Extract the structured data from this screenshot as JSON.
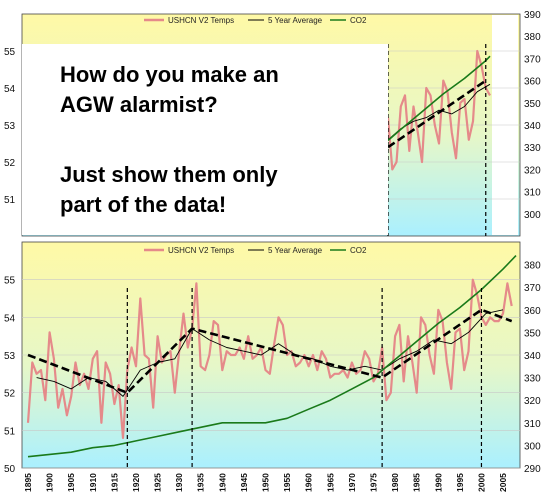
{
  "caption": {
    "line1": "How do you make an",
    "line2": "AGW alarmist?",
    "line3": "Just show them only",
    "line4": "part of the data!"
  },
  "colors": {
    "temps": "#e58a8a",
    "avg": "#000000",
    "co2": "#1a7a1a",
    "trend": "#000000",
    "bg_top": "#fff9a6",
    "bg_bottom": "#aaf0ff"
  },
  "chart_data": [
    {
      "type": "line",
      "panel": "top",
      "legend": [
        "USHCN V2 Temps",
        "5 Year Average",
        "CO2"
      ],
      "x_range": [
        1977,
        2006
      ],
      "ylim_left": [
        50,
        56
      ],
      "ylim_right": [
        290,
        390
      ],
      "y_ticks_left": [
        51,
        52,
        53,
        54,
        55
      ],
      "y_ticks_right": [
        300,
        310,
        320,
        330,
        340,
        350,
        360,
        370,
        380,
        390
      ],
      "series": [
        {
          "name": "USHCN V2 Temps",
          "axis": "left",
          "x": [
            1977,
            1978,
            1979,
            1980,
            1981,
            1982,
            1983,
            1984,
            1985,
            1986,
            1987,
            1988,
            1989,
            1990,
            1991,
            1992,
            1993,
            1994,
            1995,
            1996,
            1997,
            1998,
            1999,
            2000,
            2001
          ],
          "values": [
            53.2,
            51.8,
            52.0,
            53.5,
            53.8,
            52.3,
            53.5,
            52.8,
            52.0,
            54.0,
            53.8,
            53.0,
            52.5,
            54.2,
            53.9,
            52.8,
            52.1,
            53.6,
            53.7,
            52.6,
            53.1,
            55.0,
            54.6,
            54.0,
            53.8
          ]
        },
        {
          "name": "5 Year Average",
          "axis": "left",
          "x": [
            1977,
            1980,
            1983,
            1986,
            1989,
            1992,
            1995,
            1998,
            2001
          ],
          "values": [
            52.6,
            52.9,
            53.1,
            53.2,
            53.4,
            53.3,
            53.5,
            53.9,
            54.1
          ]
        },
        {
          "name": "CO2",
          "axis": "right",
          "x": [
            1977,
            1980,
            1985,
            1990,
            1995,
            2000,
            2001
          ],
          "values": [
            333,
            338,
            346,
            354,
            361,
            369,
            371
          ]
        }
      ],
      "trend": {
        "x": [
          1977,
          2000
        ],
        "values": [
          52.4,
          54.2
        ]
      },
      "markers_x": [
        1977,
        2000
      ]
    },
    {
      "type": "line",
      "panel": "bottom",
      "legend": [
        "USHCN V2 Temps",
        "5 Year Average",
        "CO2"
      ],
      "x_range": [
        1895,
        2008
      ],
      "x_ticks": [
        "1895",
        "1900",
        "1905",
        "1910",
        "1915",
        "1920",
        "1925",
        "1930",
        "1935",
        "1940",
        "1945",
        "1950",
        "1955",
        "1960",
        "1965",
        "1970",
        "1975",
        "1980",
        "1985",
        "1990",
        "1995",
        "2000",
        "2005"
      ],
      "ylim_left": [
        50,
        56
      ],
      "ylim_right": [
        290,
        390
      ],
      "y_ticks_left": [
        50,
        51,
        52,
        53,
        54,
        55
      ],
      "y_ticks_right": [
        290,
        300,
        310,
        320,
        330,
        340,
        350,
        360,
        370,
        380
      ],
      "series": [
        {
          "name": "USHCN V2 Temps",
          "axis": "left",
          "x": [
            1895,
            1896,
            1897,
            1898,
            1899,
            1900,
            1901,
            1902,
            1903,
            1904,
            1905,
            1906,
            1907,
            1908,
            1909,
            1910,
            1911,
            1912,
            1913,
            1914,
            1915,
            1916,
            1917,
            1918,
            1919,
            1920,
            1921,
            1922,
            1923,
            1924,
            1925,
            1926,
            1927,
            1928,
            1929,
            1930,
            1931,
            1932,
            1933,
            1934,
            1935,
            1936,
            1937,
            1938,
            1939,
            1940,
            1941,
            1942,
            1943,
            1944,
            1945,
            1946,
            1947,
            1948,
            1949,
            1950,
            1951,
            1952,
            1953,
            1954,
            1955,
            1956,
            1957,
            1958,
            1959,
            1960,
            1961,
            1962,
            1963,
            1964,
            1965,
            1966,
            1967,
            1968,
            1969,
            1970,
            1971,
            1972,
            1973,
            1974,
            1975,
            1976,
            1977,
            1978,
            1979,
            1980,
            1981,
            1982,
            1983,
            1984,
            1985,
            1986,
            1987,
            1988,
            1989,
            1990,
            1991,
            1992,
            1993,
            1994,
            1995,
            1996,
            1997,
            1998,
            1999,
            2000,
            2001,
            2002,
            2003,
            2004,
            2005,
            2006,
            2007
          ],
          "values": [
            51.2,
            52.8,
            52.5,
            52.6,
            51.8,
            53.6,
            52.9,
            51.6,
            52.1,
            51.4,
            51.9,
            52.8,
            52.2,
            52.5,
            52.1,
            52.9,
            53.1,
            51.2,
            52.8,
            52.5,
            51.7,
            52.2,
            50.8,
            52.6,
            53.2,
            52.7,
            54.5,
            53.0,
            52.9,
            51.6,
            53.5,
            52.8,
            53.0,
            53.1,
            52.0,
            53.1,
            54.1,
            53.2,
            53.7,
            54.9,
            52.7,
            52.6,
            53.0,
            53.9,
            53.8,
            52.6,
            53.1,
            53.0,
            53.0,
            53.2,
            52.9,
            53.5,
            52.9,
            53.0,
            53.2,
            52.6,
            52.5,
            53.3,
            54.0,
            53.8,
            53.0,
            53.1,
            52.7,
            52.8,
            53.0,
            52.7,
            53.0,
            52.6,
            53.1,
            52.9,
            52.4,
            52.5,
            52.5,
            52.6,
            52.4,
            52.8,
            52.5,
            52.6,
            53.1,
            52.9,
            52.3,
            52.5,
            53.2,
            51.8,
            52.0,
            53.5,
            53.8,
            52.3,
            53.5,
            52.8,
            52.0,
            54.0,
            53.8,
            53.0,
            52.5,
            54.2,
            53.9,
            52.8,
            52.1,
            53.6,
            53.7,
            52.6,
            53.1,
            55.0,
            54.6,
            54.0,
            53.8,
            54.0,
            53.9,
            53.9,
            54.1,
            54.9,
            54.3
          ]
        },
        {
          "name": "5 Year Average",
          "axis": "left",
          "x": [
            1897,
            1901,
            1905,
            1909,
            1913,
            1917,
            1921,
            1925,
            1929,
            1933,
            1937,
            1941,
            1945,
            1949,
            1953,
            1957,
            1961,
            1965,
            1969,
            1973,
            1977,
            1981,
            1985,
            1989,
            1993,
            1997,
            2001,
            2005
          ],
          "values": [
            52.4,
            52.3,
            52.1,
            52.4,
            52.3,
            51.9,
            52.6,
            52.8,
            52.9,
            53.7,
            53.4,
            53.2,
            53.1,
            53.0,
            53.3,
            53.0,
            52.9,
            52.7,
            52.6,
            52.7,
            52.6,
            52.9,
            53.1,
            53.4,
            53.3,
            53.6,
            54.1,
            54.2
          ]
        },
        {
          "name": "CO2",
          "axis": "right",
          "x": [
            1895,
            1900,
            1905,
            1910,
            1915,
            1920,
            1925,
            1930,
            1935,
            1940,
            1945,
            1950,
            1955,
            1960,
            1965,
            1970,
            1975,
            1980,
            1985,
            1990,
            1995,
            2000,
            2005,
            2008
          ],
          "values": [
            295,
            296,
            297,
            299,
            300,
            302,
            304,
            306,
            308,
            310,
            310,
            310,
            312,
            316,
            320,
            325,
            330,
            338,
            346,
            354,
            361,
            369,
            378,
            384
          ]
        }
      ],
      "trend": {
        "x": [
          1895,
          1918,
          1933,
          1977,
          2000,
          2007
        ],
        "values": [
          53.0,
          52.0,
          53.7,
          52.4,
          54.2,
          53.9
        ]
      },
      "markers_x": [
        1918,
        1933,
        1977,
        2000
      ]
    }
  ]
}
